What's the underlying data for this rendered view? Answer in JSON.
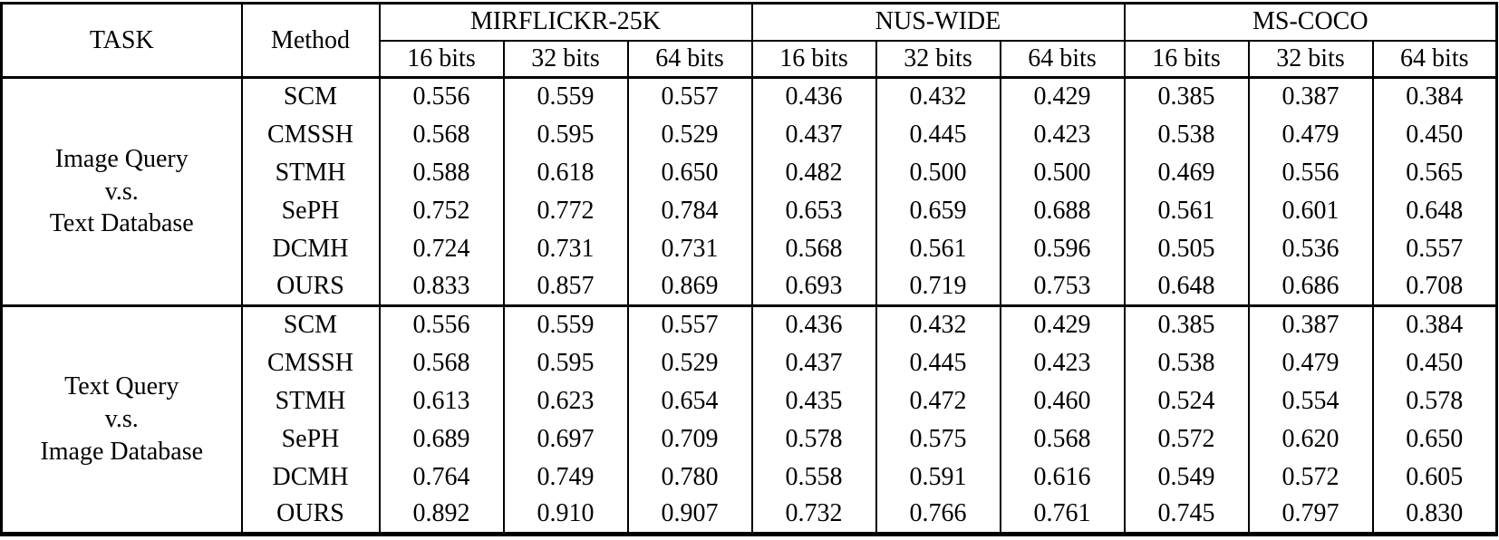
{
  "table": {
    "corner": {
      "task": "TASK",
      "method": "Method"
    },
    "datasets": [
      "MIRFLICKR-25K",
      "NUS-WIDE",
      "MS-COCO"
    ],
    "bit_labels": [
      "16 bits",
      "32 bits",
      "64 bits"
    ],
    "sections": [
      {
        "task_lines": [
          "Image Query",
          "v.s.",
          "Text Database"
        ],
        "rows": [
          {
            "method": "SCM",
            "bold": false,
            "values": [
              "0.556",
              "0.559",
              "0.557",
              "0.436",
              "0.432",
              "0.429",
              "0.385",
              "0.387",
              "0.384"
            ]
          },
          {
            "method": "CMSSH",
            "bold": false,
            "values": [
              "0.568",
              "0.595",
              "0.529",
              "0.437",
              "0.445",
              "0.423",
              "0.538",
              "0.479",
              "0.450"
            ]
          },
          {
            "method": "STMH",
            "bold": false,
            "values": [
              "0.588",
              "0.618",
              "0.650",
              "0.482",
              "0.500",
              "0.500",
              "0.469",
              "0.556",
              "0.565"
            ]
          },
          {
            "method": "SePH",
            "bold": false,
            "values": [
              "0.752",
              "0.772",
              "0.784",
              "0.653",
              "0.659",
              "0.688",
              "0.561",
              "0.601",
              "0.648"
            ]
          },
          {
            "method": "DCMH",
            "bold": false,
            "values": [
              "0.724",
              "0.731",
              "0.731",
              "0.568",
              "0.561",
              "0.596",
              "0.505",
              "0.536",
              "0.557"
            ]
          },
          {
            "method": "OURS",
            "bold": true,
            "values": [
              "0.833",
              "0.857",
              "0.869",
              "0.693",
              "0.719",
              "0.753",
              "0.648",
              "0.686",
              "0.708"
            ]
          }
        ]
      },
      {
        "task_lines": [
          "Text Query",
          "v.s.",
          "Image Database"
        ],
        "rows": [
          {
            "method": "SCM",
            "bold": false,
            "values": [
              "0.556",
              "0.559",
              "0.557",
              "0.436",
              "0.432",
              "0.429",
              "0.385",
              "0.387",
              "0.384"
            ]
          },
          {
            "method": "CMSSH",
            "bold": false,
            "values": [
              "0.568",
              "0.595",
              "0.529",
              "0.437",
              "0.445",
              "0.423",
              "0.538",
              "0.479",
              "0.450"
            ]
          },
          {
            "method": "STMH",
            "bold": false,
            "values": [
              "0.613",
              "0.623",
              "0.654",
              "0.435",
              "0.472",
              "0.460",
              "0.524",
              "0.554",
              "0.578"
            ]
          },
          {
            "method": "SePH",
            "bold": false,
            "values": [
              "0.689",
              "0.697",
              "0.709",
              "0.578",
              "0.575",
              "0.568",
              "0.572",
              "0.620",
              "0.650"
            ]
          },
          {
            "method": "DCMH",
            "bold": false,
            "values": [
              "0.764",
              "0.749",
              "0.780",
              "0.558",
              "0.591",
              "0.616",
              "0.549",
              "0.572",
              "0.605"
            ]
          },
          {
            "method": "OURS",
            "bold": true,
            "values": [
              "0.892",
              "0.910",
              "0.907",
              "0.732",
              "0.766",
              "0.761",
              "0.745",
              "0.797",
              "0.830"
            ]
          }
        ]
      }
    ],
    "text_color": "#000000",
    "background_color": "#ffffff"
  }
}
